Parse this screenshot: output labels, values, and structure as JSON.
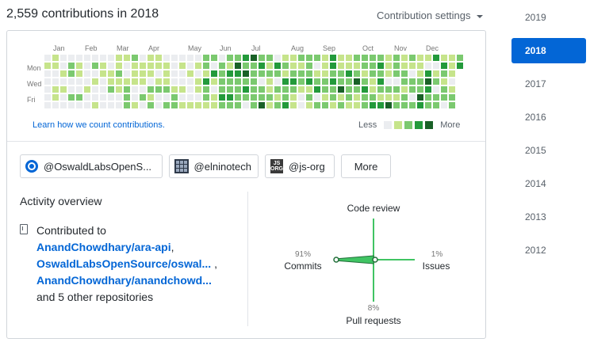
{
  "header": {
    "title": "2,559 contributions in 2018",
    "settings_label": "Contribution settings"
  },
  "calendar": {
    "months": [
      "Jan",
      "Feb",
      "Mar",
      "Apr",
      "May",
      "Jun",
      "Jul",
      "Aug",
      "Sep",
      "Oct",
      "Nov",
      "Dec"
    ],
    "days": [
      "Mon",
      "Wed",
      "Fri"
    ],
    "learn_link": "Learn how we count contributions.",
    "legend_less": "Less",
    "legend_more": "More",
    "colors": [
      "#ebedf0",
      "#c6e48b",
      "#7bc96f",
      "#239a3b",
      "#196127"
    ]
  },
  "orgs": [
    {
      "label": "@OswaldLabsOpenS...",
      "icon": "oswald-labs-ring-icon"
    },
    {
      "label": "@elninotech",
      "icon": "elninotech-grid-icon"
    },
    {
      "label": "@js-org",
      "icon": "js-org-logo-icon"
    }
  ],
  "orgs_more_label": "More",
  "activity": {
    "title": "Activity overview",
    "contributed_to": "Contributed to",
    "repos": [
      "AnandChowdhary/ara-api",
      "OswaldLabsOpenSource/oswal...",
      "AnandChowdhary/anandchowd..."
    ],
    "separator_1": ",",
    "separator_2": ",",
    "others": "and 5 other repositories"
  },
  "breakdown": {
    "code_review": {
      "label": "Code review",
      "pct": ""
    },
    "commits": {
      "label": "Commits",
      "pct": "91%"
    },
    "issues": {
      "label": "Issues",
      "pct": "1%"
    },
    "pull_requests": {
      "label": "Pull requests",
      "pct": "8%"
    }
  },
  "years": {
    "items": [
      "2019",
      "2018",
      "2017",
      "2016",
      "2015",
      "2014",
      "2013",
      "2012"
    ],
    "selected": "2018"
  }
}
